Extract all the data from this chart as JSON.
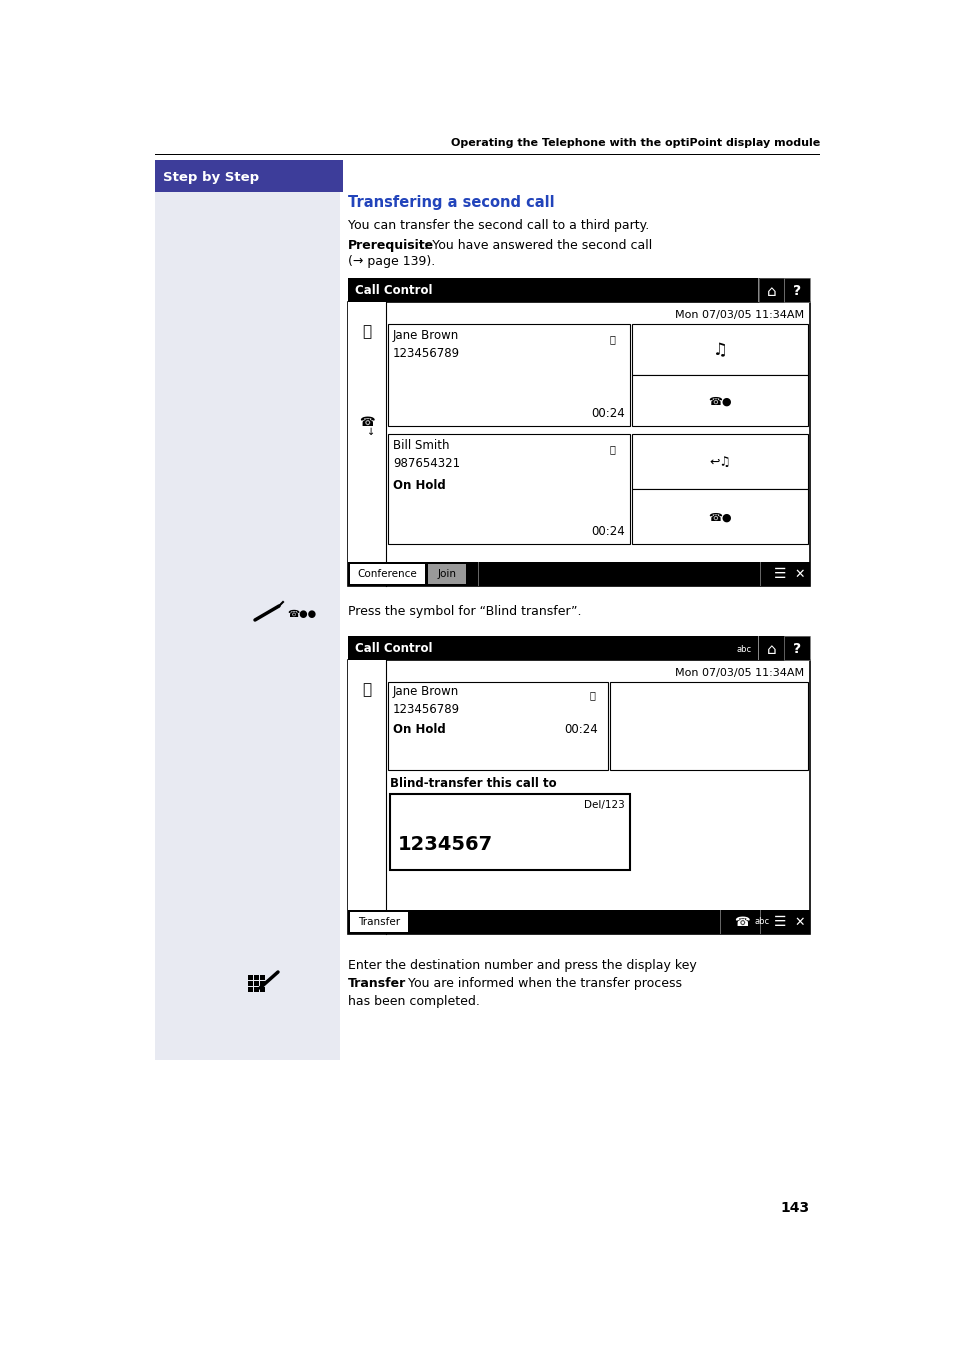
{
  "bg_color": "#ffffff",
  "left_panel_color": "#e8eaf2",
  "header_bar_color": "#3d3d9a",
  "header_text": "Step by Step",
  "header_text_color": "#ffffff",
  "top_label": "Operating the Telephone with the optiPoint display module",
  "section_title": "Transfering a second call",
  "section_title_color": "#2244bb",
  "para1": "You can transfer the second call to a third party.",
  "prereq_bold": "Prerequisite",
  "prereq_rest": ": You have answered the second call",
  "prereq_rest2": "(→ page 139).",
  "screen1_title": "Call Control",
  "screen1_time": "Mon 07/03/05 11:34AM",
  "screen1_name1": "Jane Brown",
  "screen1_num1": "123456789",
  "screen1_time1": "00:24",
  "screen1_name2": "Bill Smith",
  "screen1_num2": "987654321",
  "screen1_hold": "On Hold",
  "screen1_time2": "00:24",
  "screen1_btn1": "Conference",
  "screen1_btn2": "Join",
  "blind_label": "Press the symbol for “Blind transfer”.",
  "screen2_title": "Call Control",
  "screen2_time": "Mon 07/03/05 11:34AM",
  "screen2_name1": "Jane Brown",
  "screen2_num1": "123456789",
  "screen2_hold": "On Hold",
  "screen2_time1": "00:24",
  "screen2_blind": "Blind-transfer this call to",
  "screen2_del": "Del/123",
  "screen2_number": "1234567",
  "screen2_btn": "Transfer",
  "final_text1": "Enter the destination number and press the display key",
  "final_bold": "Transfer",
  "final_text2": ". You are informed when the transfer process",
  "final_text3": "has been completed.",
  "page_number": "143"
}
